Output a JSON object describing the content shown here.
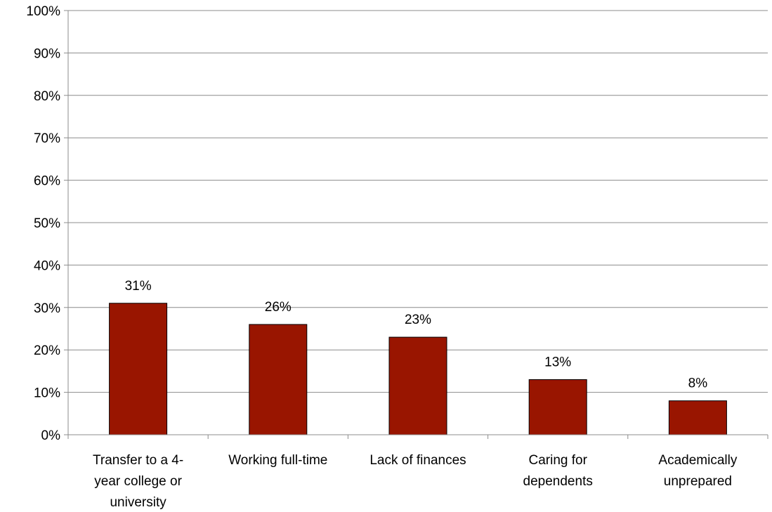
{
  "chart_data": {
    "type": "bar",
    "categories": [
      [
        "Transfer to a 4-",
        "year college or",
        "university"
      ],
      [
        "Working full-time"
      ],
      [
        "Lack of finances"
      ],
      [
        "Caring for",
        "dependents"
      ],
      [
        "Academically",
        "unprepared"
      ]
    ],
    "values": [
      31,
      26,
      23,
      13,
      8
    ],
    "value_labels": [
      "31%",
      "26%",
      "23%",
      "13%",
      "8%"
    ],
    "title": "",
    "xlabel": "",
    "ylabel": "",
    "ylim": [
      0,
      100
    ],
    "y_ticks": [
      0,
      10,
      20,
      30,
      40,
      50,
      60,
      70,
      80,
      90,
      100
    ],
    "y_tick_labels": [
      "0%",
      "10%",
      "20%",
      "30%",
      "40%",
      "50%",
      "60%",
      "70%",
      "80%",
      "90%",
      "100%"
    ],
    "grid": true,
    "legend": "none",
    "bar_color": "#991500"
  }
}
